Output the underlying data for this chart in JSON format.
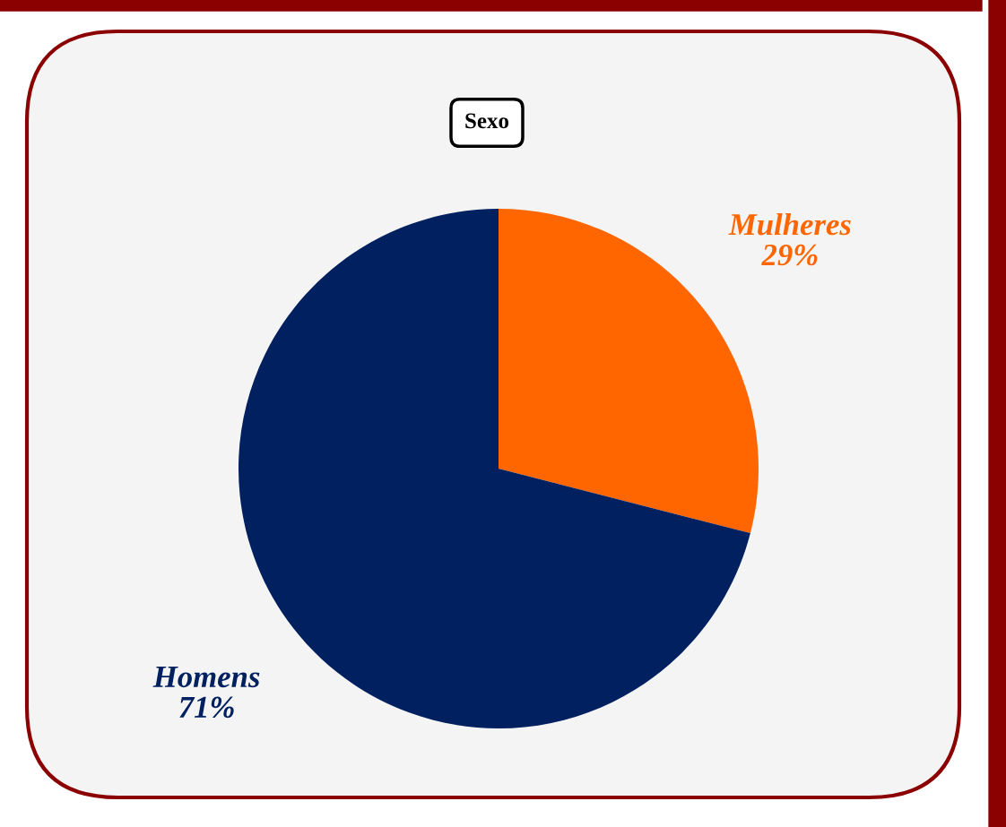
{
  "chart_data": {
    "type": "pie",
    "title": "Sexo",
    "categories": [
      "Mulheres",
      "Homens"
    ],
    "values": [
      29,
      71
    ],
    "colors": [
      "#ff6600",
      "#002060"
    ],
    "value_labels": [
      "29%",
      "71%"
    ]
  }
}
